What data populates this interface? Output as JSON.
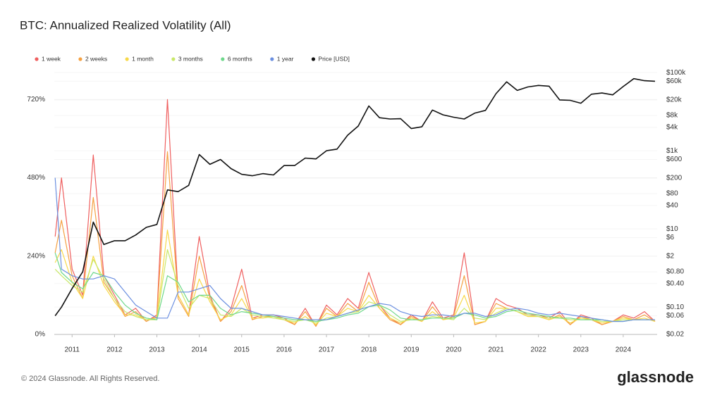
{
  "chart_data": {
    "type": "line",
    "title": "BTC: Annualized Realized Volatility (All)",
    "footer": "© 2024 Glassnode. All Rights Reserved.",
    "brand": "glassnode",
    "x": [
      2010.6,
      2010.75,
      2011,
      2011.25,
      2011.5,
      2011.75,
      2012,
      2012.25,
      2012.5,
      2012.75,
      2013,
      2013.25,
      2013.5,
      2013.75,
      2014,
      2014.25,
      2014.5,
      2014.75,
      2015,
      2015.25,
      2015.5,
      2015.75,
      2016,
      2016.25,
      2016.5,
      2016.75,
      2017,
      2017.25,
      2017.5,
      2017.75,
      2018,
      2018.25,
      2018.5,
      2018.75,
      2019,
      2019.25,
      2019.5,
      2019.75,
      2020,
      2020.25,
      2020.5,
      2020.75,
      2021,
      2021.25,
      2021.5,
      2021.75,
      2022,
      2022.25,
      2022.5,
      2022.75,
      2023,
      2023.25,
      2023.5,
      2023.75,
      2024,
      2024.25,
      2024.5,
      2024.75
    ],
    "xlim": [
      2010.58,
      2024.8
    ],
    "xticks": [
      2011,
      2012,
      2013,
      2014,
      2015,
      2016,
      2017,
      2018,
      2019,
      2020,
      2021,
      2022,
      2023,
      2024
    ],
    "ylim": [
      0,
      820
    ],
    "yticks": [
      {
        "value": 0,
        "label": "0%"
      },
      {
        "value": 240,
        "label": "240%"
      },
      {
        "value": 480,
        "label": "480%"
      },
      {
        "value": 720,
        "label": "720%"
      }
    ],
    "y2lim": [
      0.02,
      140000
    ],
    "y2_log": true,
    "y2ticks": [
      {
        "value": 100000,
        "label": "$100k"
      },
      {
        "value": 60000,
        "label": "$60k"
      },
      {
        "value": 20000,
        "label": "$20k"
      },
      {
        "value": 8000,
        "label": "$8k"
      },
      {
        "value": 4000,
        "label": "$4k"
      },
      {
        "value": 1000,
        "label": "$1k"
      },
      {
        "value": 600,
        "label": "$600"
      },
      {
        "value": 200,
        "label": "$200"
      },
      {
        "value": 80,
        "label": "$80"
      },
      {
        "value": 40,
        "label": "$40"
      },
      {
        "value": 10,
        "label": "$10"
      },
      {
        "value": 6,
        "label": "$6"
      },
      {
        "value": 2,
        "label": "$2"
      },
      {
        "value": 0.8,
        "label": "$0.80"
      },
      {
        "value": 0.4,
        "label": "$0.40"
      },
      {
        "value": 0.1,
        "label": "$0.10"
      },
      {
        "value": 0.06,
        "label": "$0.06"
      },
      {
        "value": 0.02,
        "label": "$0.02"
      }
    ],
    "grid": true,
    "series": [
      {
        "name": "1 week",
        "color": "#ef5f5f",
        "values": [
          300,
          480,
          200,
          120,
          550,
          180,
          120,
          60,
          80,
          40,
          60,
          720,
          120,
          60,
          300,
          120,
          40,
          80,
          200,
          50,
          60,
          60,
          50,
          30,
          80,
          25,
          90,
          60,
          110,
          80,
          190,
          90,
          50,
          30,
          60,
          40,
          100,
          50,
          60,
          250,
          30,
          40,
          110,
          90,
          80,
          60,
          60,
          50,
          70,
          30,
          60,
          50,
          30,
          40,
          60,
          50,
          70,
          40
        ]
      },
      {
        "name": "2 weeks",
        "color": "#f5a142",
        "values": [
          250,
          350,
          180,
          110,
          420,
          160,
          110,
          55,
          70,
          40,
          55,
          560,
          110,
          55,
          240,
          110,
          40,
          70,
          150,
          45,
          55,
          55,
          45,
          30,
          70,
          25,
          80,
          55,
          95,
          70,
          160,
          80,
          45,
          30,
          55,
          40,
          85,
          45,
          55,
          180,
          30,
          40,
          95,
          80,
          70,
          55,
          55,
          45,
          60,
          30,
          55,
          45,
          30,
          40,
          55,
          45,
          60,
          40
        ]
      },
      {
        "name": "1 month",
        "color": "#f7d94a",
        "values": [
          220,
          260,
          160,
          110,
          240,
          150,
          100,
          60,
          60,
          45,
          50,
          320,
          120,
          60,
          170,
          100,
          45,
          60,
          110,
          50,
          50,
          55,
          45,
          35,
          55,
          30,
          65,
          55,
          80,
          70,
          120,
          80,
          50,
          35,
          50,
          40,
          70,
          45,
          50,
          120,
          35,
          40,
          80,
          80,
          70,
          55,
          55,
          45,
          55,
          35,
          50,
          45,
          35,
          40,
          50,
          45,
          50,
          40
        ]
      },
      {
        "name": "3 months",
        "color": "#c9e86a",
        "values": [
          200,
          180,
          150,
          130,
          230,
          170,
          110,
          70,
          55,
          45,
          45,
          260,
          150,
          80,
          120,
          110,
          60,
          55,
          80,
          60,
          55,
          50,
          45,
          40,
          45,
          35,
          50,
          55,
          65,
          70,
          100,
          90,
          60,
          40,
          45,
          45,
          55,
          50,
          45,
          80,
          50,
          45,
          65,
          80,
          70,
          60,
          55,
          50,
          50,
          45,
          45,
          45,
          40,
          40,
          45,
          45,
          45,
          45
        ]
      },
      {
        "name": "6 months",
        "color": "#6ed88b",
        "values": [
          250,
          190,
          160,
          140,
          190,
          180,
          130,
          90,
          65,
          50,
          45,
          180,
          160,
          100,
          120,
          120,
          80,
          60,
          70,
          65,
          60,
          55,
          50,
          45,
          45,
          40,
          45,
          50,
          60,
          65,
          85,
          90,
          75,
          50,
          45,
          45,
          50,
          50,
          50,
          65,
          60,
          50,
          55,
          70,
          75,
          65,
          60,
          55,
          50,
          50,
          45,
          45,
          45,
          40,
          40,
          45,
          45,
          45
        ]
      },
      {
        "name": "1 year",
        "color": "#6b8fe0",
        "values": [
          480,
          200,
          180,
          170,
          170,
          180,
          170,
          130,
          90,
          70,
          50,
          50,
          130,
          130,
          140,
          150,
          110,
          80,
          80,
          70,
          60,
          60,
          55,
          50,
          45,
          45,
          45,
          55,
          65,
          75,
          85,
          95,
          90,
          70,
          60,
          55,
          60,
          60,
          55,
          65,
          65,
          55,
          60,
          75,
          80,
          75,
          65,
          60,
          65,
          60,
          55,
          50,
          45,
          40,
          40,
          45,
          45,
          45
        ]
      },
      {
        "name": "Price [USD]",
        "color": "#111111",
        "axis": "y2",
        "values": [
          0.06,
          0.1,
          0.3,
          0.8,
          15,
          4,
          5,
          5,
          7,
          11,
          13,
          100,
          90,
          130,
          800,
          450,
          600,
          350,
          250,
          230,
          260,
          240,
          420,
          420,
          650,
          620,
          1000,
          1100,
          2500,
          4300,
          14000,
          7000,
          6500,
          6600,
          3700,
          4100,
          11000,
          8300,
          7200,
          6500,
          9200,
          10800,
          29000,
          58000,
          35000,
          43000,
          47000,
          45000,
          20000,
          19500,
          16500,
          28000,
          30000,
          27000,
          44000,
          70000,
          62000,
          60000
        ]
      }
    ]
  }
}
